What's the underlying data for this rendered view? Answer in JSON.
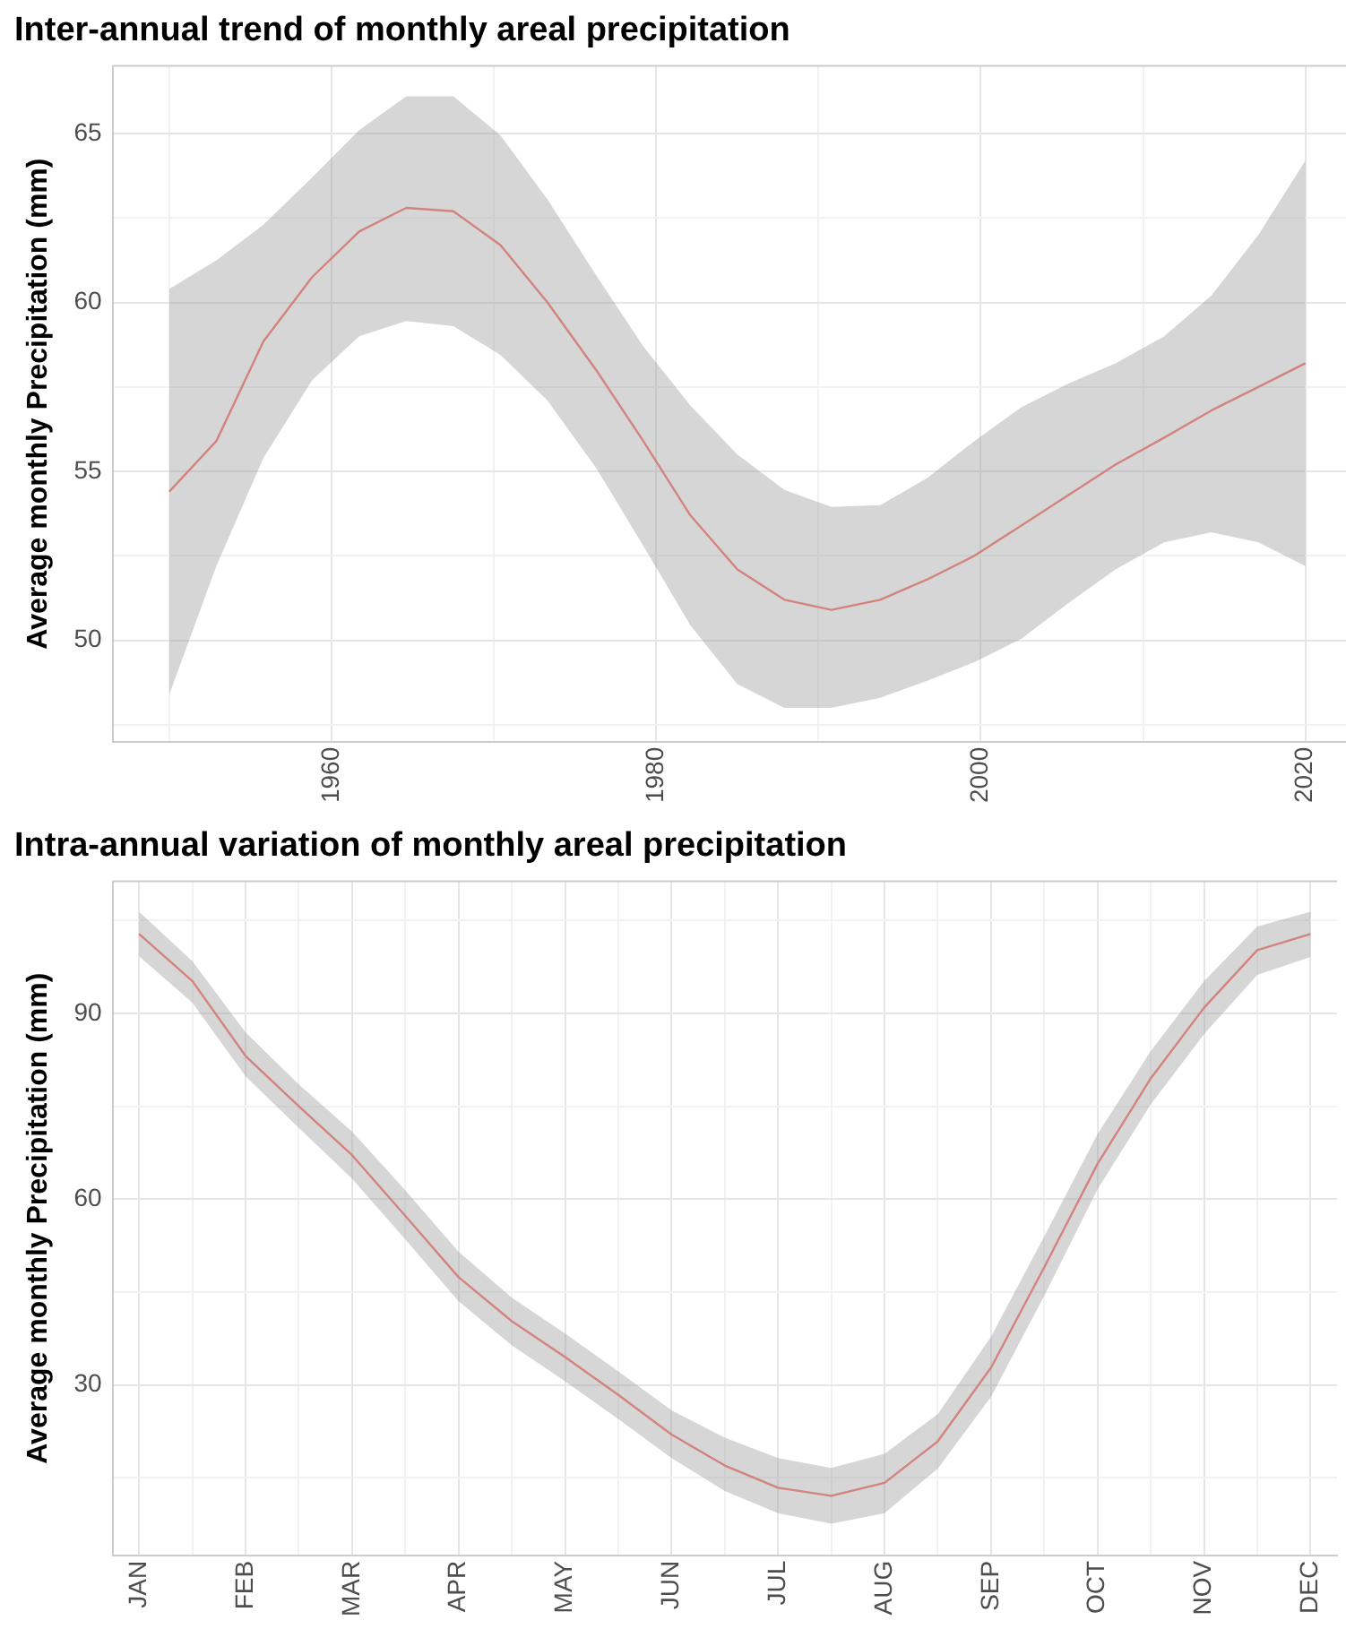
{
  "chart_data": [
    {
      "type": "line",
      "title": "Inter-annual trend of monthly areal precipitation",
      "ylabel": "Average monthly Precipitation (mm)",
      "x": [
        1950,
        1952.9,
        1955.8,
        1958.8,
        1961.7,
        1964.6,
        1967.5,
        1970.4,
        1973.3,
        1976.3,
        1979.2,
        1982.1,
        1985,
        1987.9,
        1990.8,
        1993.8,
        1996.7,
        1999.6,
        2002.5,
        2005.4,
        2008.3,
        2011.3,
        2014.2,
        2017.1,
        2020
      ],
      "series": [
        {
          "color": "#f8766d",
          "values": [
            54.4,
            55.9,
            58.85,
            60.75,
            62.1,
            62.8,
            62.7,
            61.7,
            60.0,
            58.0,
            55.9,
            53.7,
            52.1,
            51.2,
            50.9,
            51.2,
            51.8,
            52.5,
            53.4,
            54.3,
            55.2,
            56.0,
            56.8,
            57.5,
            58.2
          ],
          "upper": [
            60.4,
            61.25,
            62.3,
            63.7,
            65.1,
            66.1,
            66.1,
            64.95,
            63.05,
            60.8,
            58.7,
            56.95,
            55.5,
            54.45,
            53.95,
            54.0,
            54.8,
            55.9,
            56.9,
            57.6,
            58.2,
            59.0,
            60.2,
            62.0,
            64.2
          ],
          "lower": [
            48.4,
            52.2,
            55.4,
            57.7,
            59.0,
            59.45,
            59.3,
            58.45,
            57.1,
            55.1,
            52.8,
            50.45,
            48.7,
            48.0,
            48.0,
            48.3,
            48.8,
            49.35,
            50.05,
            51.1,
            52.1,
            52.9,
            53.2,
            52.9,
            52.2
          ]
        }
      ],
      "xlim": [
        1946.5,
        2022.5
      ],
      "xticks": [
        {
          "value": 1950,
          "label": null
        },
        1960,
        {
          "value": 1970,
          "label": null
        },
        1980,
        {
          "value": 1990,
          "label": null
        },
        2000,
        {
          "value": 2010,
          "label": null
        },
        2020
      ],
      "ylim": [
        47,
        67
      ],
      "yticks": [
        {
          "value": 47.5,
          "label": null
        },
        50,
        {
          "value": 52.5,
          "label": null
        },
        55,
        {
          "value": 57.5,
          "label": null
        },
        60,
        {
          "value": 62.5,
          "label": null
        },
        65
      ],
      "grid": true,
      "legend": false,
      "marker": "none",
      "line_style": "solid"
    },
    {
      "type": "line",
      "title": "Intra-annual variation of monthly areal precipitation",
      "ylabel": "Average monthly Precipitation (mm)",
      "categories": [
        "JAN",
        null,
        "FEB",
        null,
        "MAR",
        null,
        "APR",
        null,
        "MAY",
        null,
        "JUN",
        null,
        "JUL",
        null,
        "AUG",
        null,
        "SEP",
        null,
        "OCT",
        null,
        "NOV",
        null,
        "DEC"
      ],
      "series": [
        {
          "color": "#f8766d",
          "values": [
            102.8,
            95.2,
            83.1,
            75.0,
            67.1,
            57.3,
            47.4,
            40.3,
            34.5,
            28.4,
            22.0,
            17.0,
            13.4,
            12.1,
            14.2,
            20.9,
            32.8,
            49.0,
            65.7,
            79.5,
            90.9,
            100.2,
            102.8
          ],
          "upper": [
            106.4,
            98.4,
            86.9,
            78.5,
            70.9,
            61.4,
            51.5,
            44.1,
            38.3,
            32.2,
            25.9,
            21.5,
            18.2,
            16.6,
            18.9,
            25.3,
            37.8,
            54.0,
            70.5,
            83.9,
            95.2,
            104.0,
            106.4
          ],
          "lower": [
            99.2,
            91.7,
            79.8,
            71.5,
            63.3,
            53.5,
            43.5,
            36.4,
            30.6,
            24.5,
            18.2,
            12.9,
            9.3,
            7.6,
            9.3,
            16.5,
            28.1,
            44.4,
            61.6,
            75.3,
            86.6,
            96.2,
            99.1
          ]
        }
      ],
      "ylim": [
        2.5,
        111.3
      ],
      "yticks": [
        {
          "value": 15,
          "label": null
        },
        30,
        {
          "value": 45,
          "label": null
        },
        60,
        {
          "value": 75,
          "label": null
        },
        90,
        {
          "value": 105,
          "label": null
        }
      ],
      "grid": true,
      "legend": false,
      "marker": "none",
      "line_style": "solid"
    }
  ]
}
